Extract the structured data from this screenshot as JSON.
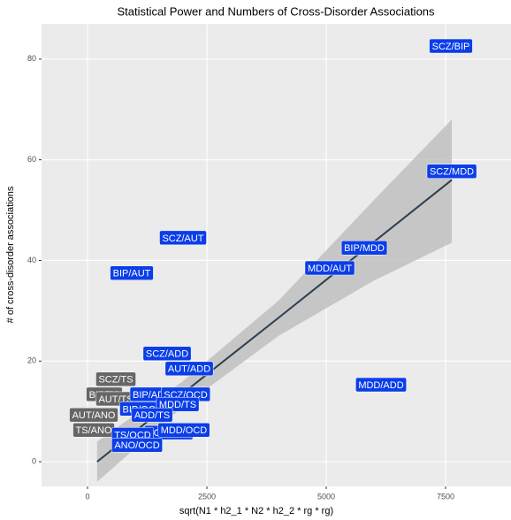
{
  "chart_data": {
    "type": "scatter",
    "title": "Statistical Power and Numbers of Cross-Disorder Associations",
    "x_label": "sqrt(N1 * h2_1 * N2 * h2_2 * rg * rg)",
    "y_label": "# of cross-disorder associations",
    "xlim": [
      -963,
      8870
    ],
    "ylim": [
      -4.9,
      87
    ],
    "xticks": [
      0,
      2500,
      5000,
      7500
    ],
    "yticks": [
      0,
      20,
      40,
      60,
      80
    ],
    "grid": true,
    "background": "#ebebeb",
    "fit": {
      "color": "#2c3e50",
      "ribbon_color": "#bdbdbd",
      "x": [
        200,
        2000,
        4000,
        6000,
        7630
      ],
      "y": [
        0,
        13.6,
        28.6,
        43.7,
        56
      ],
      "ci_upper": [
        4,
        16,
        32,
        52,
        68
      ],
      "ci_lower": [
        -4,
        11,
        25,
        36,
        43.5
      ]
    },
    "points": [
      {
        "label": "TS/ANO",
        "x": 130,
        "y": 6.3,
        "color": "#666666"
      },
      {
        "label": "AUT/ANO",
        "x": 130,
        "y": 9.3,
        "color": "#666666"
      },
      {
        "label": "BIP/TS",
        "x": 352,
        "y": 13.4,
        "color": "#666666"
      },
      {
        "label": "SCZ/TS",
        "x": 593,
        "y": 16.4,
        "color": "#666666"
      },
      {
        "label": "AUT/TS",
        "x": 593,
        "y": 12.5,
        "color": "#666666"
      },
      {
        "label": "BIP/OCD",
        "x": 1150,
        "y": 10.5,
        "color": "#0b3ee8"
      },
      {
        "label": "SCZ/ANO",
        "x": 1700,
        "y": 5.8,
        "color": "#0b3ee8"
      },
      {
        "label": "MDD/OCD",
        "x": 2018,
        "y": 6.3,
        "color": "#0b3ee8"
      },
      {
        "label": "BIP/ADD",
        "x": 1352,
        "y": 13.4,
        "color": "#0b3ee8"
      },
      {
        "label": "SCZ/OCD",
        "x": 2056,
        "y": 13.4,
        "color": "#0b3ee8"
      },
      {
        "label": "MDD/TS",
        "x": 1889,
        "y": 11.4,
        "color": "#0b3ee8"
      },
      {
        "label": "ADD/TS",
        "x": 1352,
        "y": 9.3,
        "color": "#0b3ee8"
      },
      {
        "label": "TS/OCD",
        "x": 944,
        "y": 5.4,
        "color": "#0b3ee8"
      },
      {
        "label": "ANO/OCD",
        "x": 1037,
        "y": 3.3,
        "color": "#0b3ee8"
      },
      {
        "label": "SCZ/ADD",
        "x": 1667,
        "y": 21.5,
        "color": "#0b3ee8"
      },
      {
        "label": "AUT/ADD",
        "x": 2130,
        "y": 18.5,
        "color": "#0b3ee8"
      },
      {
        "label": "MDD/ADD",
        "x": 6148,
        "y": 15.3,
        "color": "#0b3ee8"
      },
      {
        "label": "BIP/AUT",
        "x": 926,
        "y": 37.5,
        "color": "#0b3ee8"
      },
      {
        "label": "SCZ/AUT",
        "x": 2000,
        "y": 44.5,
        "color": "#0b3ee8"
      },
      {
        "label": "MDD/AUT",
        "x": 5074,
        "y": 38.5,
        "color": "#0b3ee8"
      },
      {
        "label": "BIP/MDD",
        "x": 5796,
        "y": 42.5,
        "color": "#0b3ee8"
      },
      {
        "label": "SCZ/MDD",
        "x": 7630,
        "y": 57.7,
        "color": "#0b3ee8"
      },
      {
        "label": "SCZ/BIP",
        "x": 7611,
        "y": 82.6,
        "color": "#0b3ee8"
      }
    ]
  }
}
